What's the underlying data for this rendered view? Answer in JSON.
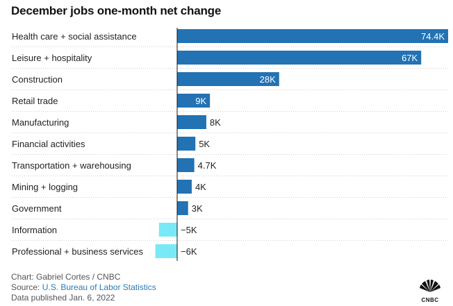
{
  "chart_data": {
    "type": "bar",
    "orientation": "horizontal",
    "title": "December jobs one-month net change",
    "categories": [
      "Health care + social assistance",
      "Leisure + hospitality",
      "Construction",
      "Retail trade",
      "Manufacturing",
      "Financial activities",
      "Transportation + warehousing",
      "Mining + logging",
      "Government",
      "Information",
      "Professional + business services"
    ],
    "values": [
      74.4,
      67,
      28,
      9,
      8,
      5,
      4.7,
      4,
      3,
      -5,
      -6
    ],
    "value_labels": [
      "74.4K",
      "67K",
      "28K",
      "9K",
      "8K",
      "5K",
      "4.7K",
      "4K",
      "3K",
      "−5K",
      "−6K"
    ],
    "units": "thousands of jobs",
    "xlim": [
      -6,
      74.4
    ],
    "colors": {
      "positive": "#2272b4",
      "negative": "#7ae9f7",
      "axis": "#111111",
      "gridline": "#cfcfcf"
    }
  },
  "footer": {
    "credit": "Chart: Gabriel Cortes / CNBC",
    "source_prefix": "Source: ",
    "source_link": "U.S. Bureau of Labor Statistics",
    "published": "Data published Jan. 6, 2022"
  },
  "logo": {
    "text": "CNBC"
  }
}
